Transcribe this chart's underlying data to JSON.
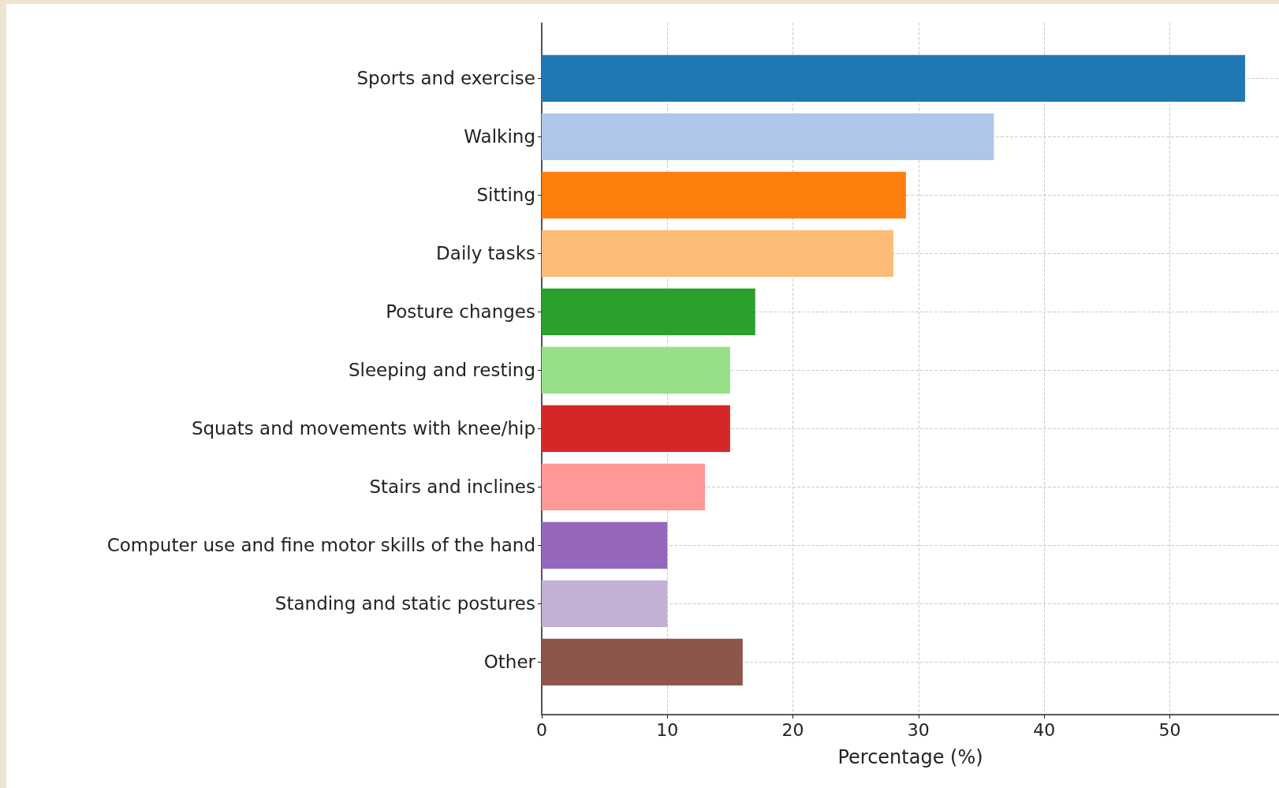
{
  "chart_data": {
    "type": "bar",
    "orientation": "horizontal",
    "xlabel": "Percentage (%)",
    "categories": [
      "Sports and exercise",
      "Walking",
      "Sitting",
      "Daily tasks",
      "Posture changes",
      "Sleeping and resting",
      "Squats and movements with knee/hip",
      "Stairs and inclines",
      "Computer use and fine motor skills of the hand",
      "Standing and static postures",
      "Other"
    ],
    "values": [
      56,
      36,
      29,
      28,
      17,
      15,
      15,
      13,
      10,
      10,
      16
    ],
    "colors": [
      "#1f77b4",
      "#aec7e8",
      "#ff7f0e",
      "#ffbb78",
      "#2ca02c",
      "#98df8a",
      "#d62728",
      "#ff9896",
      "#9467bd",
      "#c5b0d5",
      "#8c564b"
    ],
    "xlim": [
      0,
      58.7
    ],
    "xticks": [
      0,
      10,
      20,
      30,
      40,
      50
    ],
    "grid": true
  }
}
